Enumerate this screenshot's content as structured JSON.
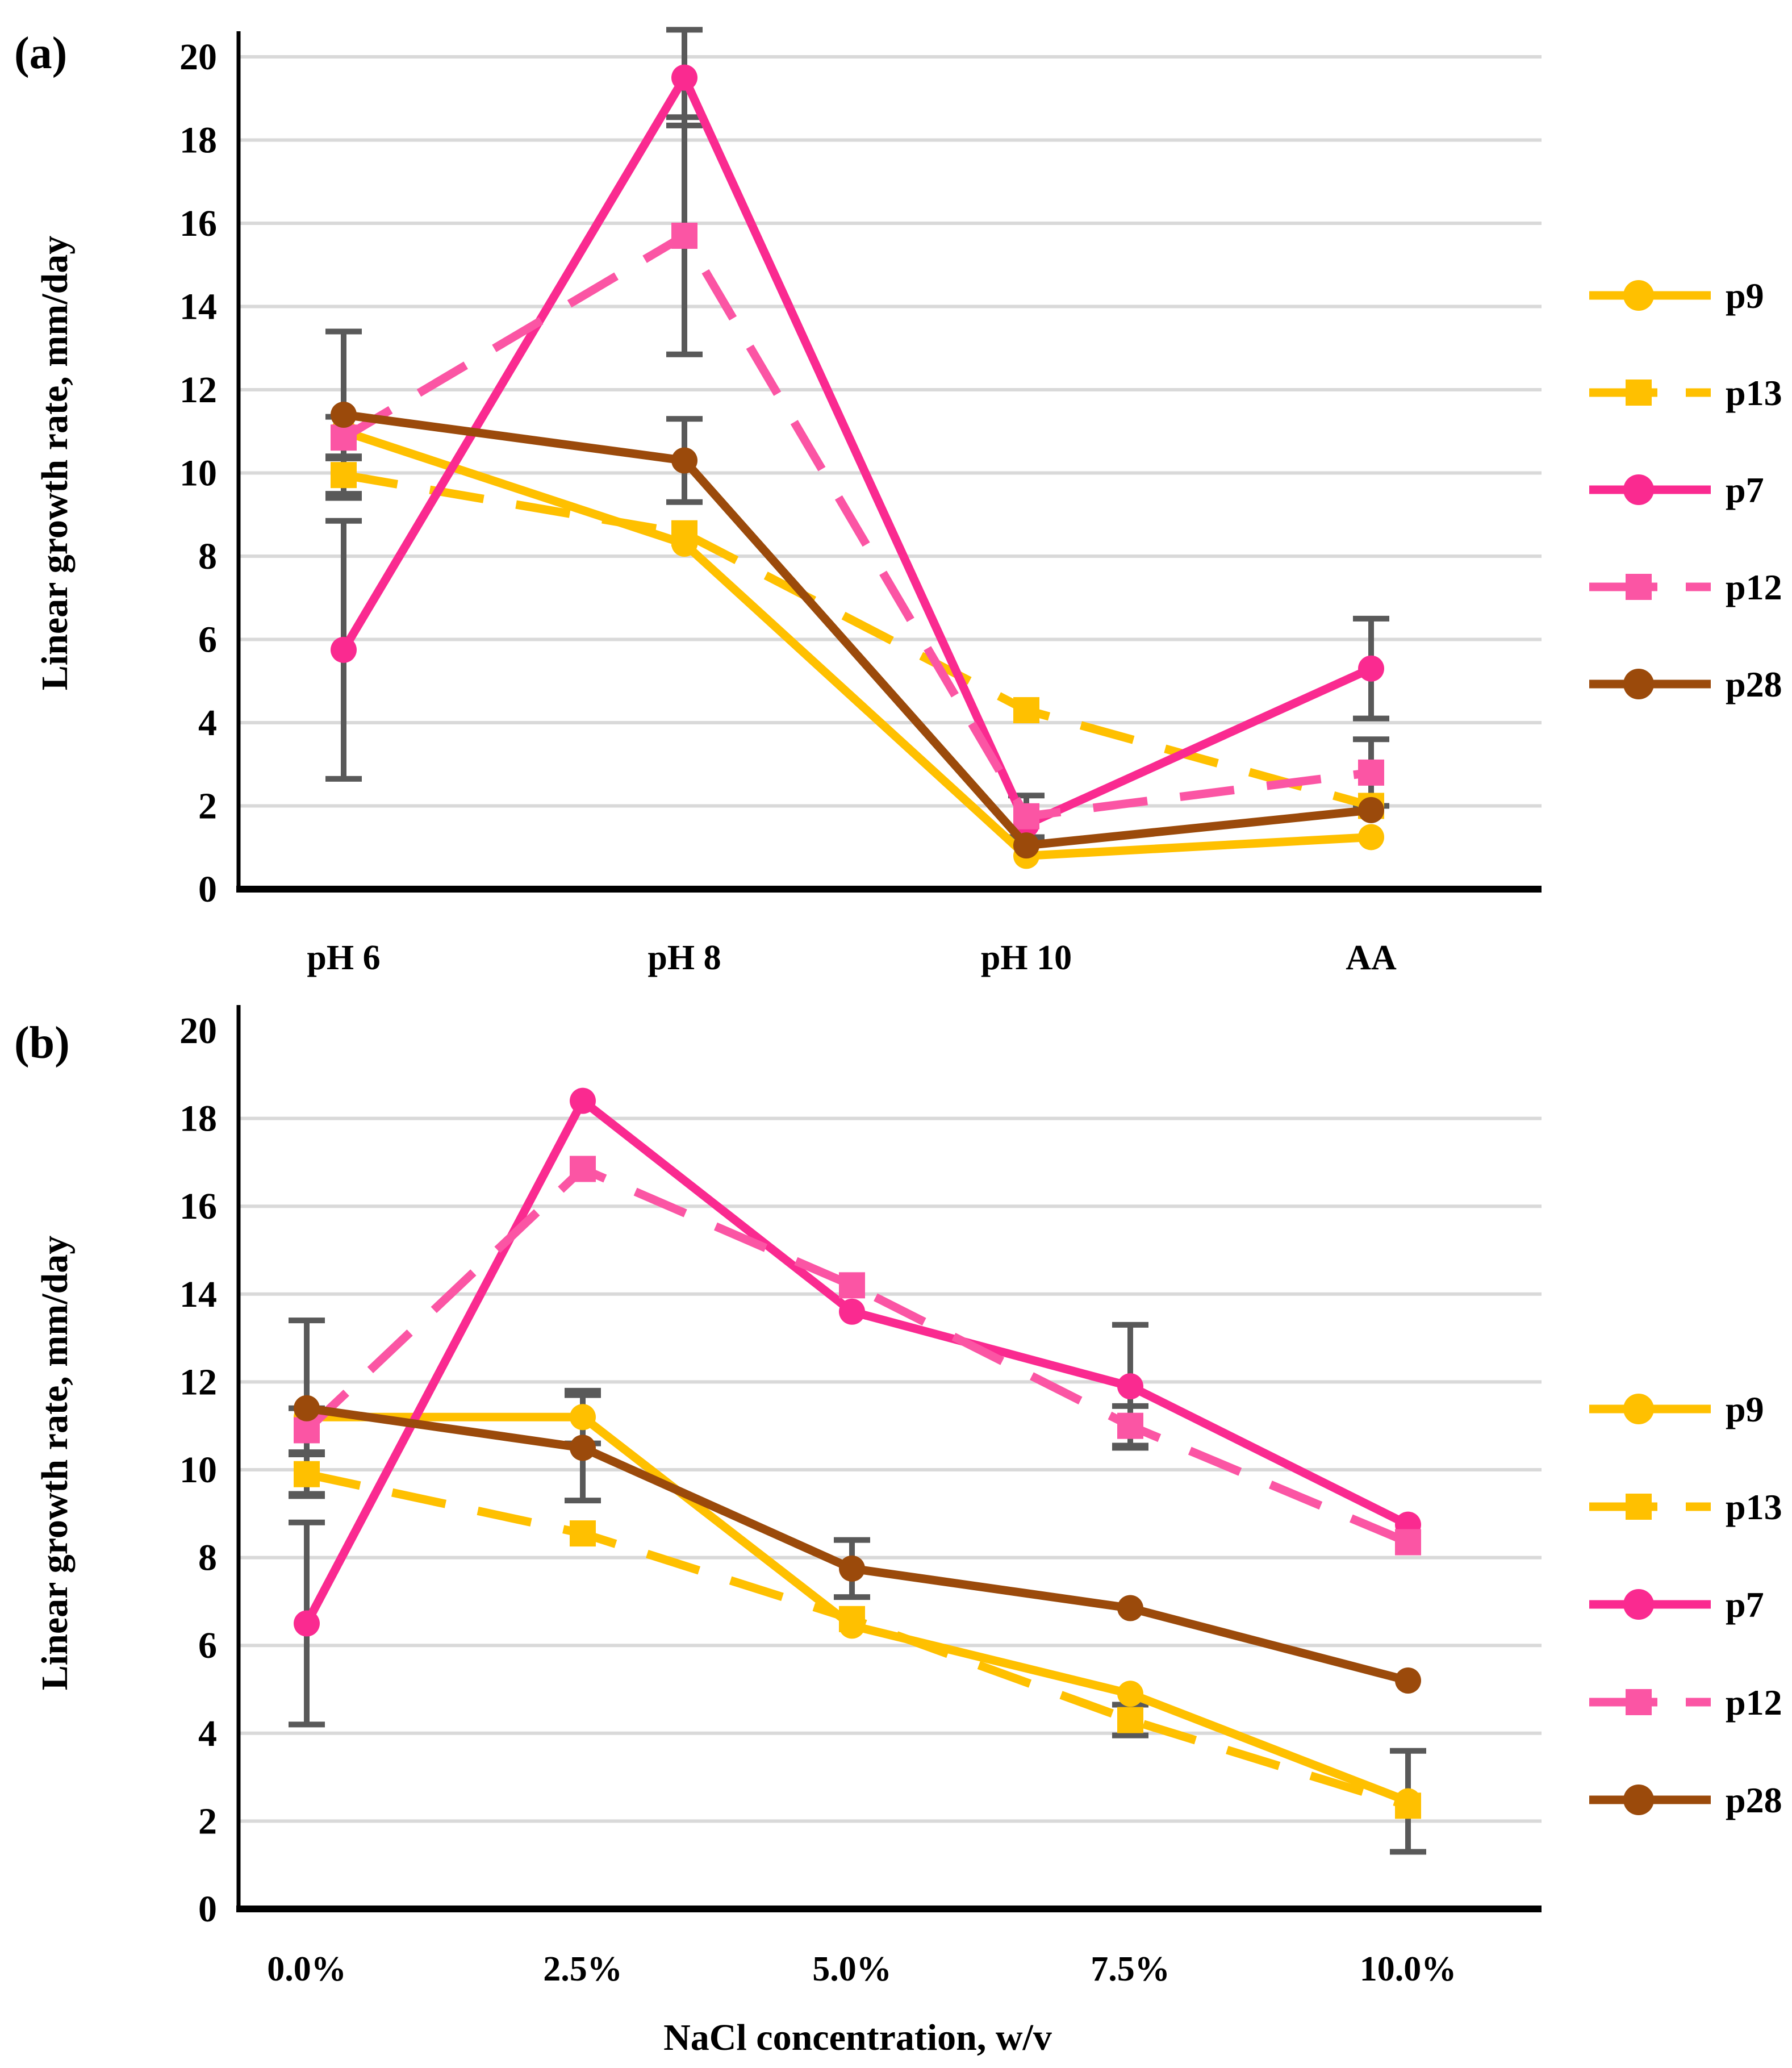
{
  "styles": {
    "grid_color": "#D9D9D9",
    "axis_color": "#000000",
    "error_bar_color": "#595959",
    "text_color": "#000000",
    "background": "#FFFFFF",
    "series_colors": {
      "p9": "#FFC000",
      "p13": "#FFC000",
      "p7": "#FA2A90",
      "p12": "#FB55A4",
      "p28": "#9B4A0B"
    }
  },
  "legend_labels": [
    "p9",
    "p13",
    "p7",
    "p12",
    "p28"
  ],
  "chart_data": [
    {
      "type": "line",
      "panel_label": "(a)",
      "title": "",
      "xlabel": "",
      "ylabel": "Linear growth rate, mm/day",
      "ylim": [
        0,
        20
      ],
      "ytick_step": 2,
      "grid": "horizontal",
      "legend_position": "right",
      "categories": [
        "pH 6",
        "pH 8",
        "pH 10",
        "AA"
      ],
      "series": [
        {
          "name": "p9",
          "color": "#FFC000",
          "line": "solid",
          "marker": "circle",
          "values": [
            11.0,
            8.3,
            0.8,
            1.25
          ],
          "errors": [
            null,
            null,
            null,
            null
          ]
        },
        {
          "name": "p13",
          "color": "#FFC000",
          "line": "dashed",
          "marker": "square",
          "values": [
            9.95,
            8.55,
            4.3,
            2.0
          ],
          "errors": [
            0.45,
            null,
            null,
            null
          ]
        },
        {
          "name": "p7",
          "color": "#FA2A90",
          "line": "solid",
          "marker": "circle",
          "values": [
            5.75,
            19.5,
            1.55,
            5.3
          ],
          "errors": [
            3.1,
            1.15,
            null,
            1.2
          ]
        },
        {
          "name": "p12",
          "color": "#FB55A4",
          "line": "dashed",
          "marker": "square",
          "values": [
            10.85,
            15.7,
            1.75,
            2.8
          ],
          "errors": [
            0.5,
            2.85,
            0.5,
            0.8
          ]
        },
        {
          "name": "p28",
          "color": "#9B4A0B",
          "line": "solid",
          "marker": "circle",
          "values": [
            11.4,
            10.3,
            1.05,
            1.9
          ],
          "errors": [
            2.0,
            1.0,
            null,
            null
          ]
        }
      ]
    },
    {
      "type": "line",
      "panel_label": "(b)",
      "title": "",
      "xlabel": "NaCl concentration, w/v",
      "ylabel": "Linear growth rate, mm/day",
      "ylim": [
        0,
        20
      ],
      "ytick_step": 2,
      "grid": "horizontal",
      "legend_position": "right",
      "categories": [
        "0.0%",
        "2.5%",
        "5.0%",
        "7.5%",
        "10.0%"
      ],
      "series": [
        {
          "name": "p9",
          "color": "#FFC000",
          "line": "solid",
          "marker": "circle",
          "values": [
            11.2,
            11.2,
            6.45,
            4.9,
            2.45
          ],
          "errors": [
            null,
            0.6,
            null,
            null,
            1.15
          ]
        },
        {
          "name": "p13",
          "color": "#FFC000",
          "line": "dashed",
          "marker": "square",
          "values": [
            9.9,
            8.55,
            6.6,
            4.3,
            2.35
          ],
          "errors": [
            0.45,
            null,
            null,
            0.35,
            null
          ]
        },
        {
          "name": "p7",
          "color": "#FA2A90",
          "line": "solid",
          "marker": "circle",
          "values": [
            6.5,
            18.4,
            13.6,
            11.9,
            8.75
          ],
          "errors": [
            2.3,
            null,
            null,
            1.4,
            null
          ]
        },
        {
          "name": "p12",
          "color": "#FB55A4",
          "line": "dashed",
          "marker": "square",
          "values": [
            10.9,
            16.85,
            14.2,
            11.0,
            8.35
          ],
          "errors": [
            0.5,
            null,
            null,
            0.45,
            null
          ]
        },
        {
          "name": "p28",
          "color": "#9B4A0B",
          "line": "solid",
          "marker": "circle",
          "values": [
            11.4,
            10.5,
            7.75,
            6.85,
            5.2
          ],
          "errors": [
            2.0,
            1.2,
            0.65,
            null,
            null
          ]
        }
      ]
    }
  ]
}
